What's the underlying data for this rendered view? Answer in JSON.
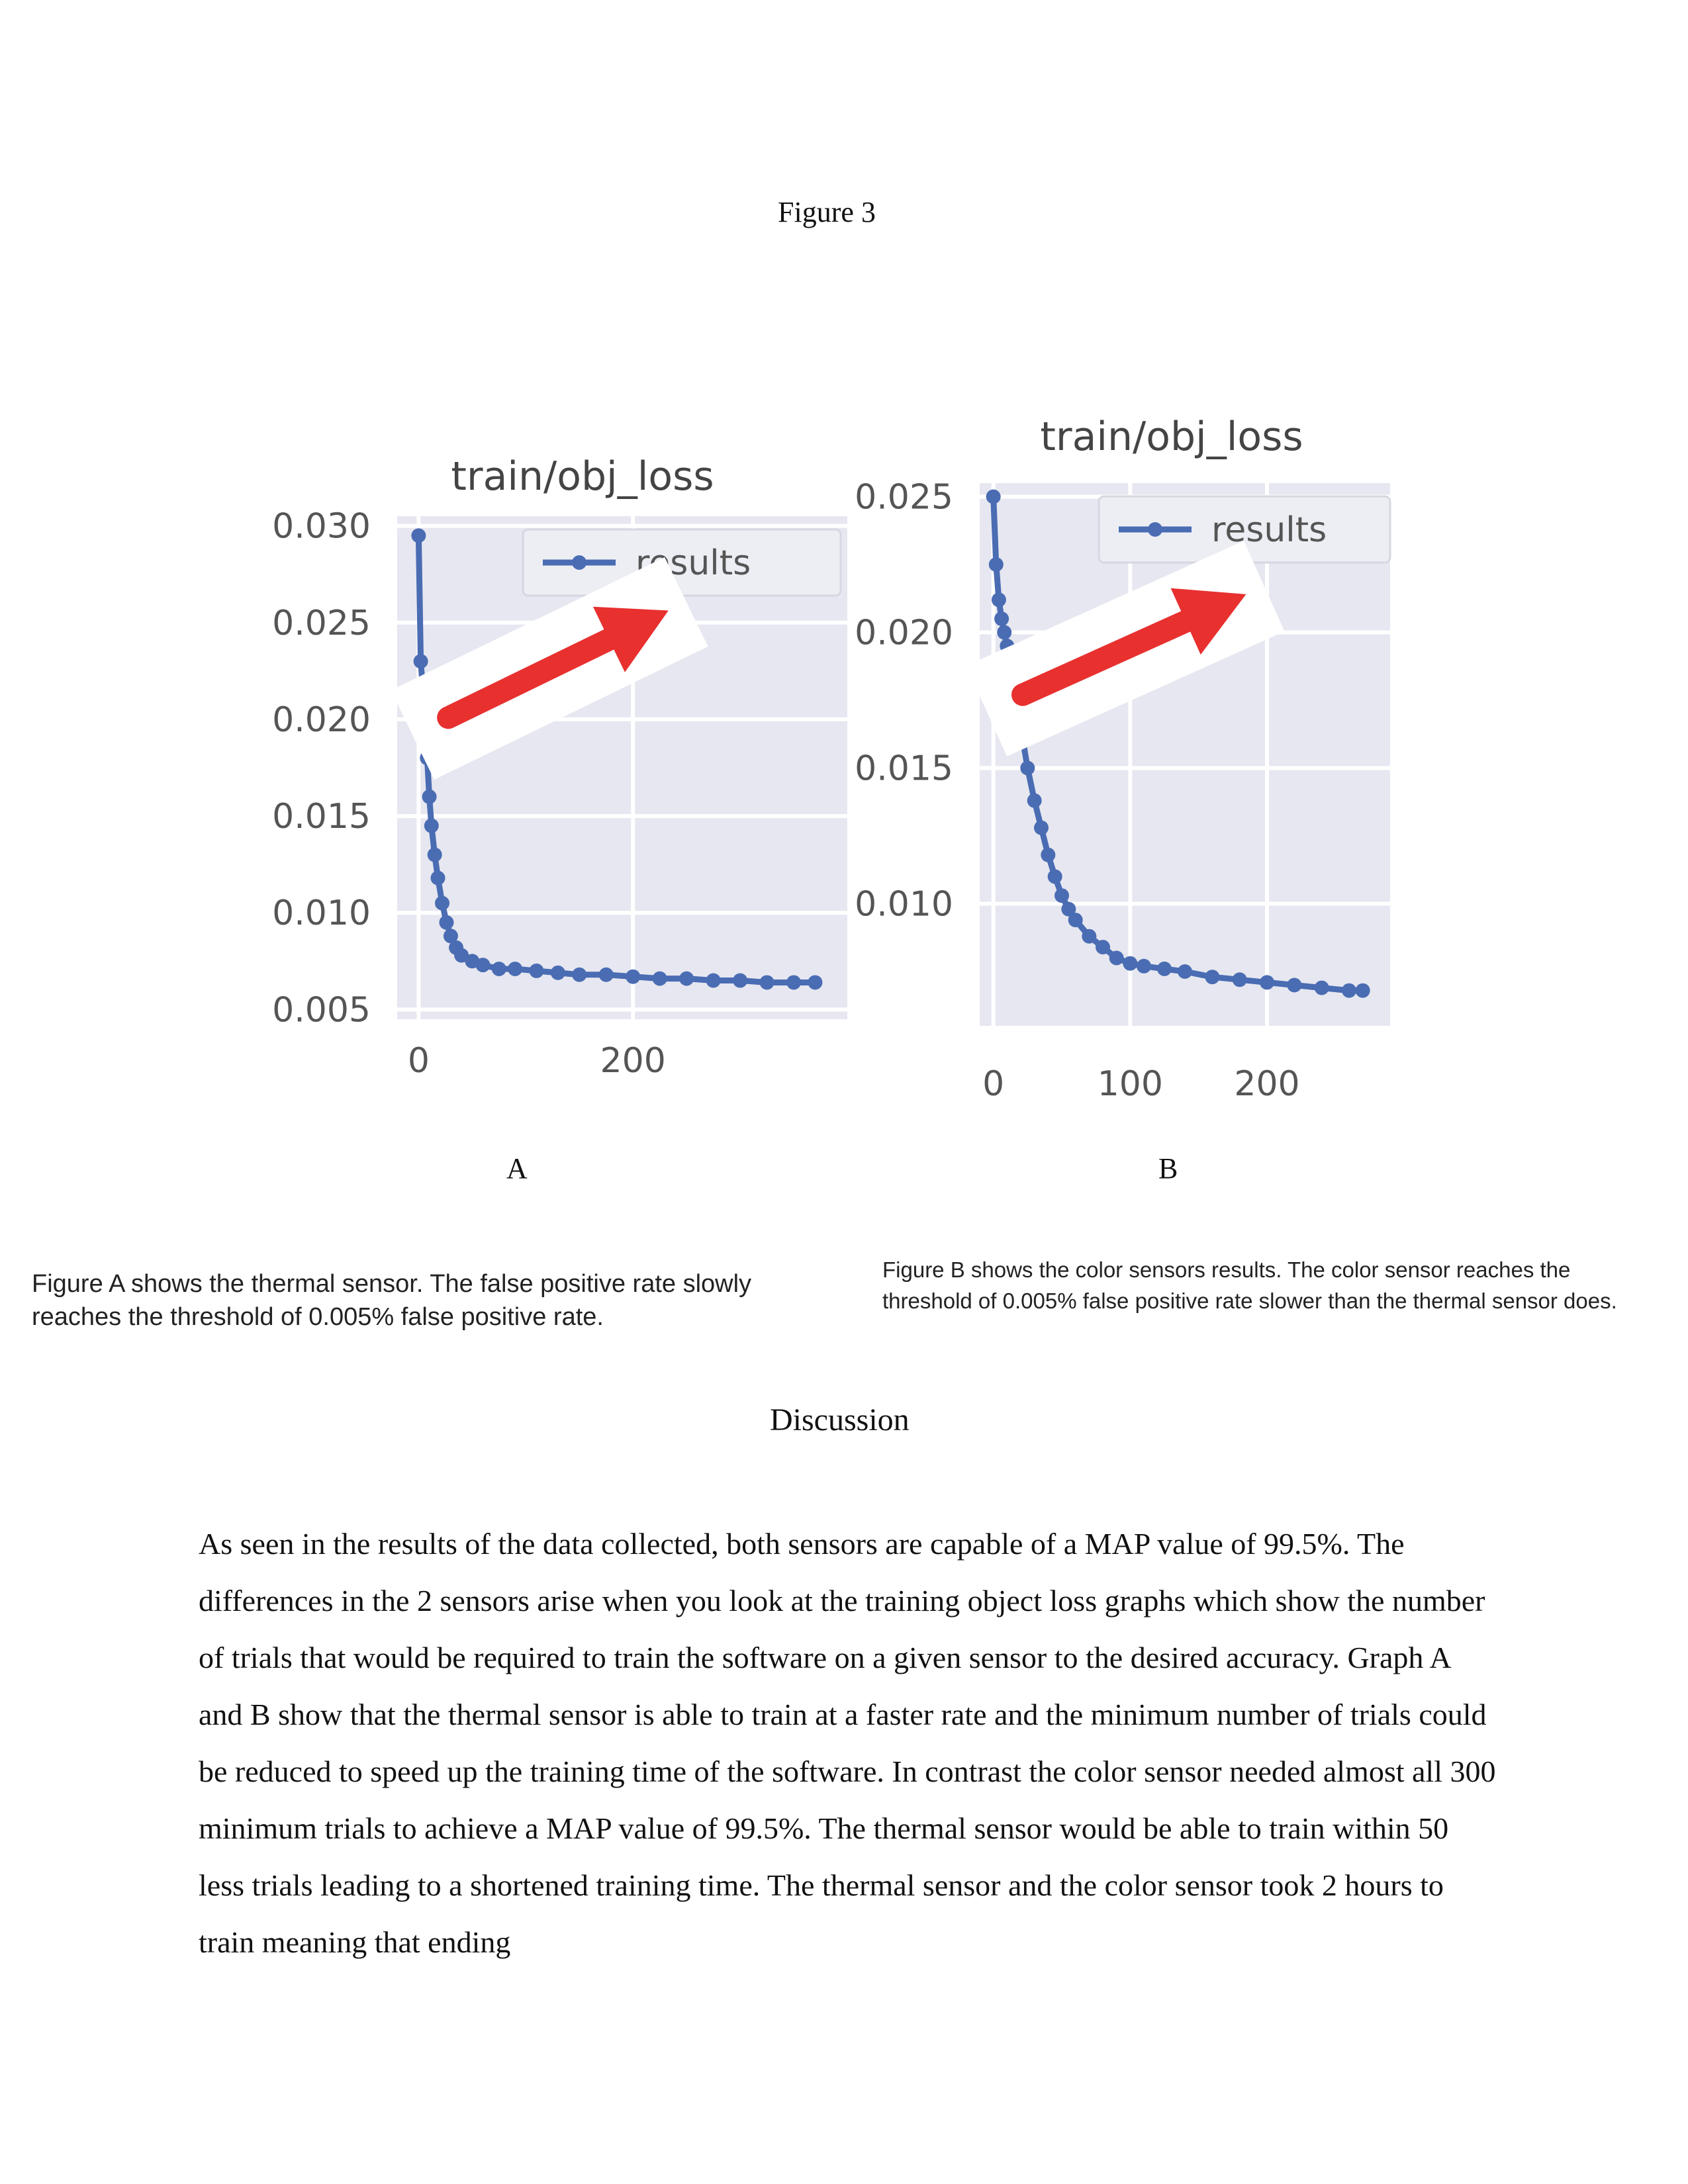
{
  "figure_title": "Figure 3",
  "figures": {
    "a_label": "A",
    "b_label": "B"
  },
  "captions": {
    "a": "Figure A shows the thermal sensor. The false positive rate slowly reaches the threshold of 0.005% false positive rate.",
    "b": "Figure B shows the color sensors results. The color sensor reaches the threshold of 0.005% false positive rate slower than the thermal sensor does."
  },
  "discussion": {
    "heading": "Discussion",
    "body": "As seen in the results of the data collected, both sensors are capable of a MAP value of 99.5%. The differences in the 2 sensors arise when you look at the training object loss graphs which show the number of trials that would be required to train the software on a given sensor to the desired accuracy. Graph A and B show that the thermal sensor is able to train at a faster rate and the minimum number of trials could be reduced to speed up the training time of the software. In contrast the color sensor needed almost all 300 minimum trials to achieve a MAP value of 99.5%. The thermal sensor would be able to train within 50 less trials leading to a shortened training time. The thermal sensor and the color sensor took 2 hours to train meaning that ending"
  },
  "colors": {
    "plot_bg": "#e6e7f0",
    "grid": "#ffffff",
    "series": "#4a6cb3",
    "arrow": "#e8302f",
    "tick_text": "#555555"
  },
  "chart_data": [
    {
      "type": "line",
      "title": "train/obj_loss",
      "legend": [
        "results"
      ],
      "legend_position": "top-right",
      "grid": true,
      "xlim": [
        -20,
        400
      ],
      "ylim": [
        0.0045,
        0.0305
      ],
      "xticks": [
        "0",
        "200"
      ],
      "yticks": [
        "0.030",
        "0.025",
        "0.020",
        "0.015",
        "0.010",
        "0.005"
      ],
      "series": [
        {
          "name": "results",
          "x": [
            0,
            2,
            4,
            6,
            8,
            10,
            12,
            15,
            18,
            22,
            26,
            30,
            35,
            40,
            50,
            60,
            75,
            90,
            110,
            130,
            150,
            175,
            200,
            225,
            250,
            275,
            300,
            325,
            350,
            370
          ],
          "y": [
            0.0295,
            0.023,
            0.0215,
            0.02,
            0.018,
            0.016,
            0.0145,
            0.013,
            0.0118,
            0.0105,
            0.0095,
            0.0088,
            0.0082,
            0.0078,
            0.0075,
            0.0073,
            0.0071,
            0.0071,
            0.007,
            0.0069,
            0.0068,
            0.0068,
            0.0067,
            0.0066,
            0.0066,
            0.0065,
            0.0065,
            0.0064,
            0.0064,
            0.0064
          ]
        }
      ]
    },
    {
      "type": "line",
      "title": "train/obj_loss",
      "legend": [
        "results"
      ],
      "legend_position": "top-right",
      "grid": true,
      "xlim": [
        -10,
        290
      ],
      "ylim": [
        0.0055,
        0.0255
      ],
      "xticks": [
        "0",
        "100",
        "200"
      ],
      "yticks": [
        "0.025",
        "0.020",
        "0.015",
        "0.010"
      ],
      "series": [
        {
          "name": "results",
          "x": [
            0,
            2,
            4,
            6,
            8,
            10,
            13,
            16,
            20,
            25,
            30,
            35,
            40,
            45,
            50,
            55,
            60,
            70,
            80,
            90,
            100,
            110,
            125,
            140,
            160,
            180,
            200,
            220,
            240,
            260,
            270
          ],
          "y": [
            0.025,
            0.0225,
            0.0212,
            0.0205,
            0.02,
            0.0195,
            0.0185,
            0.0175,
            0.0165,
            0.015,
            0.0138,
            0.0128,
            0.0118,
            0.011,
            0.0103,
            0.0098,
            0.0094,
            0.0088,
            0.0084,
            0.008,
            0.0078,
            0.0077,
            0.0076,
            0.0075,
            0.0073,
            0.0072,
            0.0071,
            0.007,
            0.0069,
            0.0068,
            0.0068
          ]
        }
      ]
    }
  ]
}
